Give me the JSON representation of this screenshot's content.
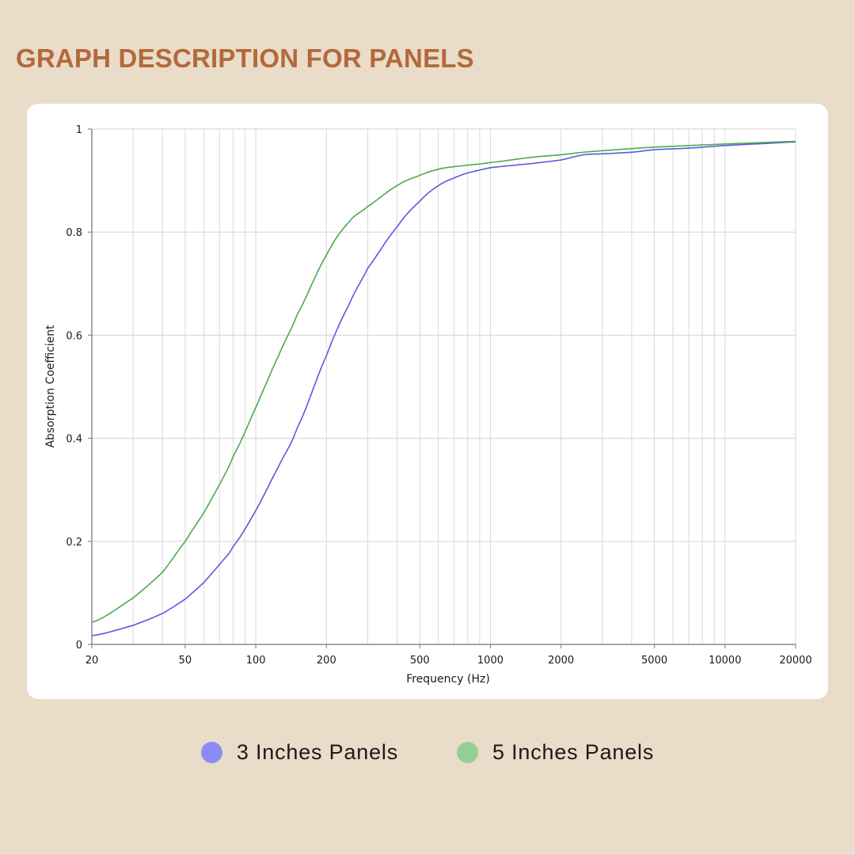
{
  "page": {
    "title": "GRAPH DESCRIPTION FOR PANELS"
  },
  "colors": {
    "background": "#e9dcc8",
    "title": "#b4683b",
    "card": "#ffffff",
    "grid": "#d9d9d9",
    "axis": "#8c8c8c"
  },
  "legend": {
    "items": [
      {
        "label": "3 Inches Panels",
        "color": "#8a8cf5"
      },
      {
        "label": "5 Inches Panels",
        "color": "#95cf95"
      }
    ]
  },
  "chart_data": {
    "type": "line",
    "xlabel": "Frequency (Hz)",
    "ylabel": "Absorption Coefficient",
    "xscale": "log",
    "xlim": [
      20,
      20000
    ],
    "ylim": [
      0,
      1
    ],
    "xticks": [
      20,
      50,
      100,
      200,
      500,
      1000,
      2000,
      5000,
      10000,
      20000
    ],
    "xtick_labels": [
      "20",
      "50",
      "100",
      "200",
      "500",
      "1000",
      "2000",
      "5000",
      "10000",
      "20000"
    ],
    "yticks": [
      0,
      0.2,
      0.4,
      0.6,
      0.8,
      1
    ],
    "ytick_labels": [
      "0",
      "0.2",
      "0.4",
      "0.6",
      "0.8",
      "1"
    ],
    "grid": true,
    "series": [
      {
        "name": "3 Inches Panels",
        "color": "#5a5ae0",
        "x": [
          20,
          30,
          40,
          50,
          60,
          70,
          80,
          100,
          125,
          150,
          200,
          250,
          300,
          400,
          500,
          600,
          700,
          800,
          1000,
          1500,
          2000,
          2500,
          3000,
          4000,
          5000,
          7000,
          10000,
          15000,
          20000
        ],
        "y": [
          0.017,
          0.037,
          0.06,
          0.088,
          0.12,
          0.155,
          0.19,
          0.26,
          0.345,
          0.42,
          0.56,
          0.66,
          0.73,
          0.81,
          0.86,
          0.89,
          0.905,
          0.915,
          0.925,
          0.933,
          0.94,
          0.95,
          0.952,
          0.955,
          0.96,
          0.963,
          0.968,
          0.972,
          0.975
        ]
      },
      {
        "name": "5 Inches Panels",
        "color": "#4caa4c",
        "x": [
          20,
          30,
          40,
          50,
          60,
          70,
          80,
          100,
          125,
          150,
          200,
          250,
          300,
          400,
          500,
          600,
          700,
          800,
          1000,
          1500,
          2000,
          2500,
          3000,
          4000,
          5000,
          7000,
          10000,
          15000,
          20000
        ],
        "y": [
          0.043,
          0.09,
          0.14,
          0.2,
          0.255,
          0.31,
          0.365,
          0.46,
          0.56,
          0.64,
          0.755,
          0.82,
          0.85,
          0.89,
          0.91,
          0.922,
          0.927,
          0.93,
          0.935,
          0.945,
          0.95,
          0.955,
          0.958,
          0.962,
          0.965,
          0.968,
          0.971,
          0.974,
          0.976
        ]
      }
    ]
  }
}
